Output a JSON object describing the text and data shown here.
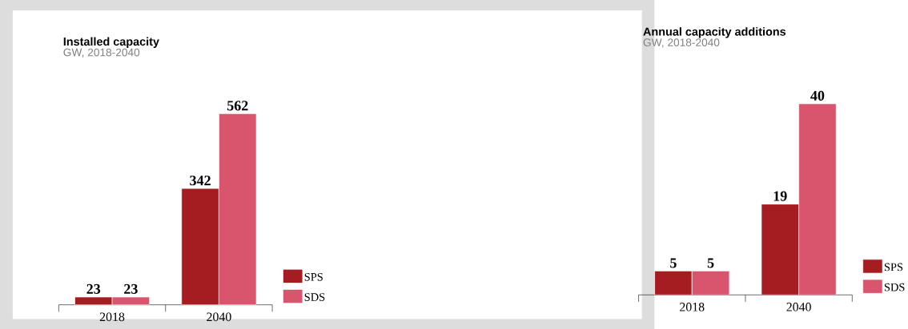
{
  "chart_data": [
    {
      "type": "bar",
      "title": "Installed capacity",
      "subtitle": "GW, 2018-2040",
      "categories": [
        "2018",
        "2040"
      ],
      "data_labels": true,
      "legend": "bottom right",
      "series": [
        {
          "name": "SPS",
          "color": "#a51d20",
          "values": [
            23,
            342
          ]
        },
        {
          "name": "SDS",
          "color": "#d9546d",
          "values": [
            23,
            562
          ]
        }
      ]
    },
    {
      "type": "bar",
      "title": "Annual capacity additions",
      "subtitle": "GW, 2018-2040",
      "categories": [
        "2018",
        "2040"
      ],
      "data_labels": true,
      "legend": "bottom right",
      "series": [
        {
          "name": "SPS",
          "color": "#a51d20",
          "values": [
            5,
            19
          ]
        },
        {
          "name": "SDS",
          "color": "#d9546d",
          "values": [
            5,
            40
          ]
        }
      ]
    }
  ]
}
